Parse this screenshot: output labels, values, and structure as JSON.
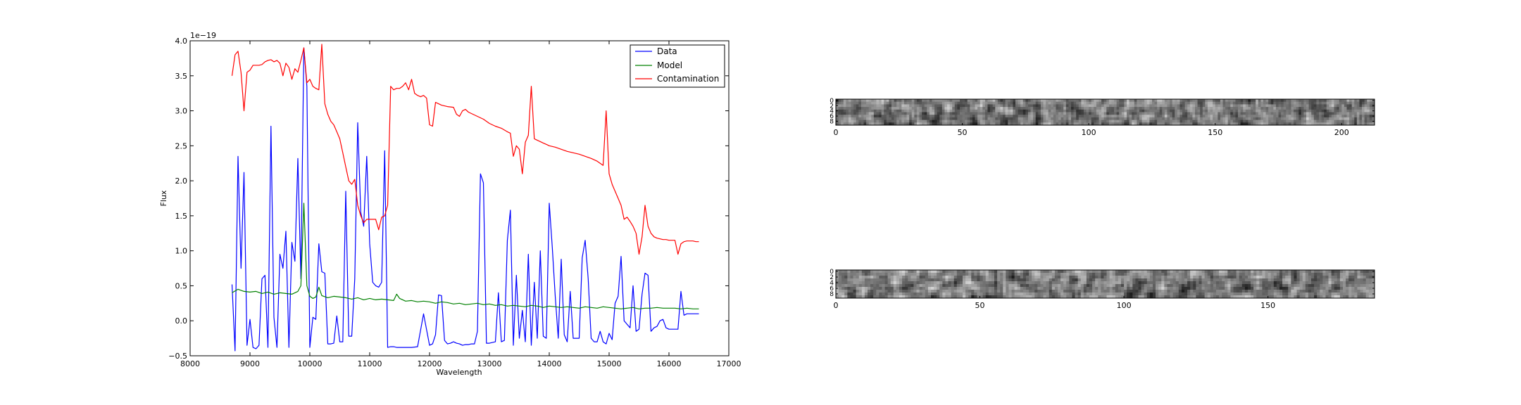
{
  "chart_data": [
    {
      "type": "line",
      "title": "",
      "xlabel": "Wavelength",
      "ylabel": "Flux",
      "offset_text": "1e−19",
      "xlim": [
        8000,
        17000
      ],
      "ylim": [
        -0.5,
        4.0
      ],
      "xticks": [
        8000,
        9000,
        10000,
        11000,
        12000,
        13000,
        14000,
        15000,
        16000,
        17000
      ],
      "yticks": [
        -0.5,
        0.0,
        0.5,
        1.0,
        1.5,
        2.0,
        2.5,
        3.0,
        3.5,
        4.0
      ],
      "xtick_labels": [
        "8000",
        "9000",
        "10000",
        "11000",
        "12000",
        "13000",
        "14000",
        "15000",
        "16000",
        "17000"
      ],
      "ytick_labels": [
        "−0.5",
        "0.0",
        "0.5",
        "1.0",
        "1.5",
        "2.0",
        "2.5",
        "3.0",
        "3.5",
        "4.0"
      ],
      "grid": false,
      "legend_position": "top-right",
      "series": [
        {
          "name": "Data",
          "color": "#0000ff",
          "x": [
            8700,
            8750,
            8800,
            8850,
            8900,
            8950,
            9000,
            9050,
            9100,
            9150,
            9200,
            9250,
            9300,
            9350,
            9400,
            9450,
            9500,
            9550,
            9600,
            9650,
            9700,
            9750,
            9800,
            9850,
            9900,
            9950,
            10000,
            10050,
            10100,
            10150,
            10200,
            10250,
            10300,
            10350,
            10400,
            10450,
            10500,
            10550,
            10600,
            10650,
            10700,
            10750,
            10800,
            10850,
            10900,
            10950,
            11000,
            11050,
            11100,
            11150,
            11200,
            11250,
            11300,
            11350,
            11400,
            11450,
            11500,
            11600,
            11700,
            11800,
            11900,
            12000,
            12050,
            12100,
            12150,
            12200,
            12250,
            12300,
            12350,
            12400,
            12450,
            12500,
            12550,
            12600,
            12650,
            12700,
            12750,
            12800,
            12850,
            12900,
            12950,
            13000,
            13100,
            13150,
            13200,
            13250,
            13300,
            13350,
            13400,
            13450,
            13500,
            13550,
            13600,
            13650,
            13700,
            13750,
            13800,
            13850,
            13900,
            13950,
            14000,
            14050,
            14100,
            14150,
            14200,
            14250,
            14300,
            14350,
            14400,
            14450,
            14500,
            14550,
            14600,
            14650,
            14700,
            14750,
            14800,
            14850,
            14900,
            14950,
            15000,
            15050,
            15100,
            15150,
            15200,
            15250,
            15300,
            15350,
            15400,
            15450,
            15500,
            15550,
            15600,
            15650,
            15700,
            15750,
            15800,
            15850,
            15900,
            15950,
            16000,
            16050,
            16100,
            16150,
            16200,
            16250,
            16300,
            16350,
            16400,
            16450,
            16500
          ],
          "y": [
            0.52,
            -0.43,
            2.35,
            0.75,
            2.12,
            -0.35,
            0.02,
            -0.38,
            -0.4,
            -0.35,
            0.6,
            0.65,
            -0.38,
            2.78,
            0.05,
            -0.38,
            0.95,
            0.75,
            1.28,
            -0.38,
            1.12,
            0.85,
            2.32,
            0.6,
            3.9,
            3.35,
            -0.38,
            0.05,
            0.02,
            1.1,
            0.7,
            0.68,
            -0.33,
            -0.33,
            -0.32,
            0.07,
            -0.3,
            -0.3,
            1.85,
            -0.22,
            -0.22,
            0.6,
            2.83,
            1.55,
            1.35,
            2.35,
            1.1,
            0.55,
            0.5,
            0.48,
            0.55,
            2.43,
            -0.38,
            -0.37,
            -0.37,
            -0.38,
            -0.38,
            -0.38,
            -0.38,
            -0.37,
            0.1,
            -0.35,
            -0.33,
            -0.2,
            0.37,
            0.36,
            -0.28,
            -0.33,
            -0.32,
            -0.3,
            -0.32,
            -0.33,
            -0.35,
            -0.34,
            -0.34,
            -0.33,
            -0.33,
            -0.15,
            2.1,
            1.97,
            -0.32,
            -0.32,
            -0.3,
            0.4,
            -0.3,
            -0.28,
            1.15,
            1.58,
            -0.35,
            0.65,
            -0.25,
            0.15,
            -0.3,
            0.95,
            -0.35,
            0.55,
            -0.25,
            1.0,
            -0.22,
            -0.25,
            1.68,
            1.05,
            0.35,
            -0.25,
            0.88,
            -0.2,
            -0.3,
            0.42,
            -0.25,
            -0.25,
            -0.25,
            0.9,
            1.15,
            0.6,
            -0.25,
            -0.3,
            -0.3,
            -0.15,
            -0.3,
            -0.33,
            -0.18,
            -0.27,
            0.25,
            0.35,
            0.92,
            0.0,
            -0.05,
            -0.1,
            0.5,
            -0.15,
            -0.12,
            0.38,
            0.68,
            0.65,
            -0.15,
            -0.1,
            -0.08,
            0.0,
            0.02,
            -0.1,
            -0.12,
            -0.12,
            -0.12,
            -0.12,
            0.42,
            0.08,
            0.1,
            0.1,
            0.1,
            0.1,
            0.1
          ],
          "values_source_note": ""
        },
        {
          "name": "Model",
          "color": "#008000",
          "x": [
            8700,
            8800,
            8900,
            9000,
            9100,
            9200,
            9300,
            9400,
            9500,
            9600,
            9700,
            9800,
            9850,
            9900,
            9950,
            10000,
            10050,
            10100,
            10150,
            10200,
            10300,
            10400,
            10500,
            10600,
            10700,
            10800,
            10900,
            11000,
            11100,
            11200,
            11300,
            11400,
            11450,
            11500,
            11600,
            11700,
            11800,
            11900,
            12000,
            12100,
            12200,
            12300,
            12400,
            12500,
            12600,
            12700,
            12800,
            12900,
            13000,
            13100,
            13200,
            13300,
            13400,
            13500,
            13600,
            13700,
            13800,
            13900,
            14000,
            14100,
            14200,
            14300,
            14400,
            14500,
            14600,
            14700,
            14800,
            14900,
            15000,
            15100,
            15200,
            15300,
            15400,
            15500,
            15600,
            15700,
            15800,
            15900,
            16000,
            16100,
            16200,
            16300,
            16400,
            16500
          ],
          "y": [
            0.4,
            0.45,
            0.42,
            0.41,
            0.42,
            0.39,
            0.41,
            0.38,
            0.4,
            0.39,
            0.38,
            0.42,
            0.5,
            1.68,
            0.5,
            0.35,
            0.32,
            0.34,
            0.48,
            0.36,
            0.33,
            0.35,
            0.34,
            0.33,
            0.31,
            0.33,
            0.3,
            0.32,
            0.3,
            0.31,
            0.3,
            0.29,
            0.38,
            0.32,
            0.28,
            0.29,
            0.27,
            0.28,
            0.27,
            0.25,
            0.27,
            0.26,
            0.24,
            0.25,
            0.23,
            0.24,
            0.25,
            0.23,
            0.24,
            0.22,
            0.23,
            0.21,
            0.22,
            0.21,
            0.2,
            0.22,
            0.21,
            0.19,
            0.21,
            0.2,
            0.19,
            0.2,
            0.19,
            0.18,
            0.2,
            0.19,
            0.18,
            0.2,
            0.19,
            0.18,
            0.17,
            0.18,
            0.19,
            0.17,
            0.18,
            0.18,
            0.19,
            0.18,
            0.18,
            0.18,
            0.17,
            0.18,
            0.17,
            0.17
          ]
        },
        {
          "name": "Contamination",
          "color": "#ff0000",
          "x": [
            8700,
            8750,
            8800,
            8850,
            8900,
            8950,
            9000,
            9050,
            9100,
            9150,
            9200,
            9250,
            9300,
            9350,
            9400,
            9450,
            9500,
            9550,
            9600,
            9650,
            9700,
            9750,
            9800,
            9850,
            9900,
            9950,
            10000,
            10050,
            10100,
            10150,
            10200,
            10250,
            10300,
            10350,
            10400,
            10450,
            10500,
            10550,
            10600,
            10650,
            10700,
            10750,
            10800,
            10850,
            10900,
            10950,
            11000,
            11050,
            11100,
            11150,
            11200,
            11250,
            11300,
            11350,
            11400,
            11450,
            11500,
            11550,
            11600,
            11650,
            11700,
            11750,
            11800,
            11850,
            11900,
            11950,
            12000,
            12050,
            12100,
            12150,
            12200,
            12300,
            12400,
            12450,
            12500,
            12550,
            12600,
            12650,
            12700,
            12800,
            12900,
            13000,
            13100,
            13200,
            13300,
            13350,
            13400,
            13450,
            13500,
            13550,
            13600,
            13650,
            13700,
            13750,
            13800,
            13850,
            13900,
            13950,
            14000,
            14100,
            14200,
            14300,
            14400,
            14500,
            14600,
            14700,
            14800,
            14850,
            14900,
            14950,
            15000,
            15050,
            15100,
            15150,
            15200,
            15250,
            15300,
            15350,
            15400,
            15450,
            15500,
            15550,
            15600,
            15650,
            15700,
            15750,
            15800,
            15850,
            15900,
            15950,
            16000,
            16050,
            16100,
            16150,
            16200,
            16250,
            16300,
            16350,
            16400,
            16450,
            16500
          ],
          "y": [
            3.5,
            3.8,
            3.85,
            3.55,
            3.0,
            3.55,
            3.58,
            3.65,
            3.65,
            3.65,
            3.66,
            3.7,
            3.72,
            3.73,
            3.7,
            3.72,
            3.68,
            3.5,
            3.68,
            3.62,
            3.45,
            3.6,
            3.55,
            3.72,
            3.9,
            3.4,
            3.45,
            3.35,
            3.32,
            3.3,
            3.95,
            3.1,
            2.95,
            2.85,
            2.8,
            2.7,
            2.6,
            2.4,
            2.2,
            2.0,
            1.95,
            2.02,
            1.65,
            1.5,
            1.4,
            1.45,
            1.45,
            1.45,
            1.45,
            1.3,
            1.48,
            1.5,
            1.65,
            3.35,
            3.3,
            3.32,
            3.32,
            3.35,
            3.4,
            3.3,
            3.45,
            3.25,
            3.22,
            3.2,
            3.22,
            3.18,
            2.8,
            2.78,
            3.12,
            3.1,
            3.08,
            3.06,
            3.05,
            2.95,
            2.92,
            3.0,
            3.02,
            2.98,
            2.96,
            2.92,
            2.88,
            2.82,
            2.78,
            2.75,
            2.7,
            2.68,
            2.35,
            2.5,
            2.45,
            2.1,
            2.55,
            2.65,
            3.35,
            2.6,
            2.58,
            2.56,
            2.54,
            2.52,
            2.5,
            2.48,
            2.45,
            2.42,
            2.4,
            2.38,
            2.35,
            2.32,
            2.28,
            2.25,
            2.22,
            3.0,
            2.1,
            1.95,
            1.85,
            1.75,
            1.65,
            1.45,
            1.48,
            1.42,
            1.35,
            1.25,
            0.95,
            1.2,
            1.65,
            1.35,
            1.25,
            1.2,
            1.18,
            1.17,
            1.16,
            1.16,
            1.15,
            1.15,
            1.15,
            0.95,
            1.1,
            1.13,
            1.14,
            1.14,
            1.14,
            1.13,
            1.13
          ]
        }
      ]
    },
    {
      "type": "heatmap",
      "title": "",
      "colormap": "gray",
      "xlim": [
        0,
        213
      ],
      "ylim": [
        0,
        10
      ],
      "xticks": [
        0,
        50,
        100,
        150,
        200
      ],
      "xtick_labels": [
        "0",
        "50",
        "100",
        "150",
        "200"
      ],
      "yticks": [
        0,
        2,
        4,
        6,
        8
      ],
      "ytick_labels": [
        "0",
        "2",
        "4",
        "6",
        "8"
      ],
      "grid": false
    },
    {
      "type": "heatmap",
      "title": "",
      "colormap": "gray",
      "xlim": [
        0,
        187
      ],
      "ylim": [
        0,
        10
      ],
      "xticks": [
        0,
        50,
        100,
        150
      ],
      "xtick_labels": [
        "0",
        "50",
        "100",
        "150"
      ],
      "yticks": [
        0,
        2,
        4,
        6,
        8
      ],
      "ytick_labels": [
        "0",
        "2",
        "4",
        "6",
        "8"
      ],
      "grid": false
    }
  ]
}
